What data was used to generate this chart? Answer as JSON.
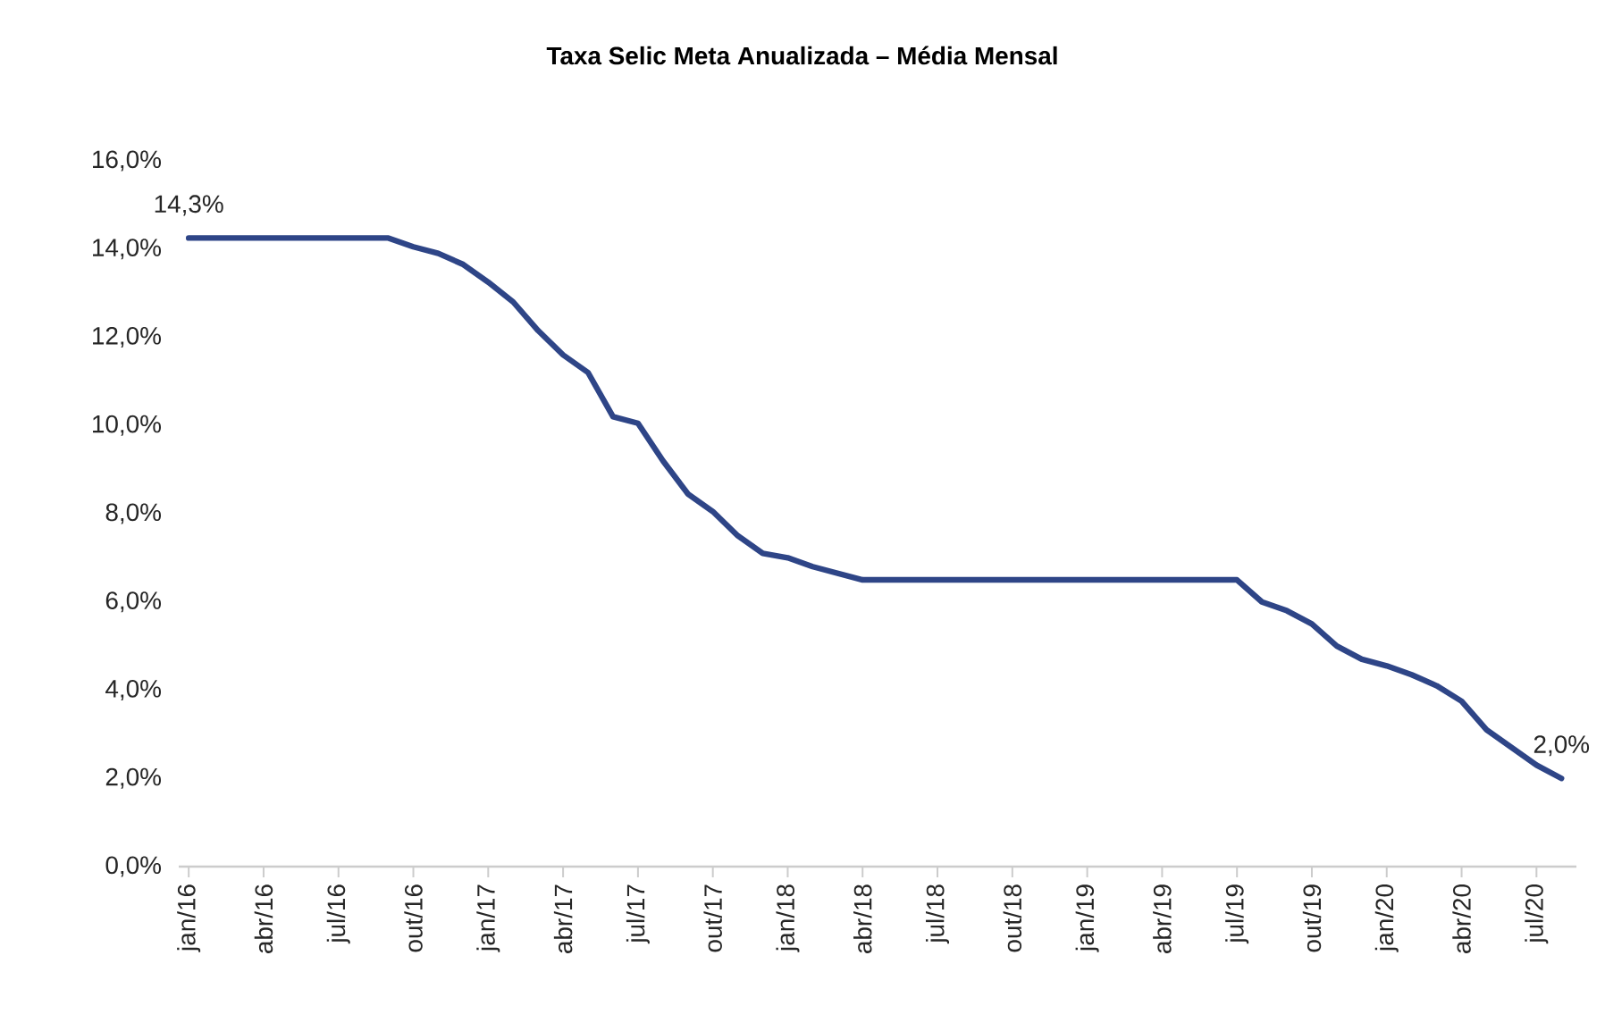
{
  "chart_data": {
    "type": "line",
    "title": "Taxa Selic Meta Anualizada – Média Mensal",
    "categories": [
      "jan/16",
      null,
      null,
      "abr/16",
      null,
      null,
      "jul/16",
      null,
      null,
      "out/16",
      null,
      null,
      "jan/17",
      null,
      null,
      "abr/17",
      null,
      null,
      "jul/17",
      null,
      null,
      "out/17",
      null,
      null,
      "jan/18",
      null,
      null,
      "abr/18",
      null,
      null,
      "jul/18",
      null,
      null,
      "out/18",
      null,
      null,
      "jan/19",
      null,
      null,
      "abr/19",
      null,
      null,
      "jul/19",
      null,
      null,
      "out/19",
      null,
      null,
      "jan/20",
      null,
      null,
      "abr/20",
      null,
      null,
      "jul/20",
      null
    ],
    "series": [
      {
        "color": "#2e4587",
        "values": [
          14.25,
          14.25,
          14.25,
          14.25,
          14.25,
          14.25,
          14.25,
          14.25,
          14.25,
          14.05,
          13.9,
          13.65,
          13.25,
          12.8,
          12.15,
          11.6,
          11.2,
          10.2,
          10.05,
          9.2,
          8.45,
          8.05,
          7.5,
          7.1,
          7.0,
          6.8,
          6.65,
          6.5,
          6.5,
          6.5,
          6.5,
          6.5,
          6.5,
          6.5,
          6.5,
          6.5,
          6.5,
          6.5,
          6.5,
          6.5,
          6.5,
          6.5,
          6.5,
          6.0,
          5.8,
          5.5,
          5.0,
          4.7,
          4.55,
          4.35,
          4.1,
          3.75,
          3.1,
          2.7,
          2.3,
          2.0
        ],
        "value_labels": [
          "14,3%",
          null,
          null,
          null,
          null,
          null,
          null,
          null,
          null,
          null,
          null,
          null,
          null,
          null,
          null,
          null,
          null,
          null,
          null,
          null,
          null,
          null,
          null,
          null,
          null,
          null,
          null,
          null,
          null,
          null,
          null,
          null,
          null,
          null,
          null,
          null,
          null,
          null,
          null,
          null,
          null,
          null,
          null,
          null,
          null,
          null,
          null,
          null,
          null,
          null,
          null,
          null,
          null,
          null,
          null,
          "2,0%"
        ]
      }
    ],
    "ylim": [
      0,
      16
    ],
    "yticks": [
      {
        "value": 0,
        "label": "0,0%"
      },
      {
        "value": 2,
        "label": "2,0%"
      },
      {
        "value": 4,
        "label": "4,0%"
      },
      {
        "value": 6,
        "label": "6,0%"
      },
      {
        "value": 8,
        "label": "8,0%"
      },
      {
        "value": 10,
        "label": "10,0%"
      },
      {
        "value": 12,
        "label": "12,0%"
      },
      {
        "value": 14,
        "label": "14,0%"
      },
      {
        "value": 16,
        "label": "16,0%"
      }
    ],
    "marker": "none",
    "line_style": "solid"
  }
}
